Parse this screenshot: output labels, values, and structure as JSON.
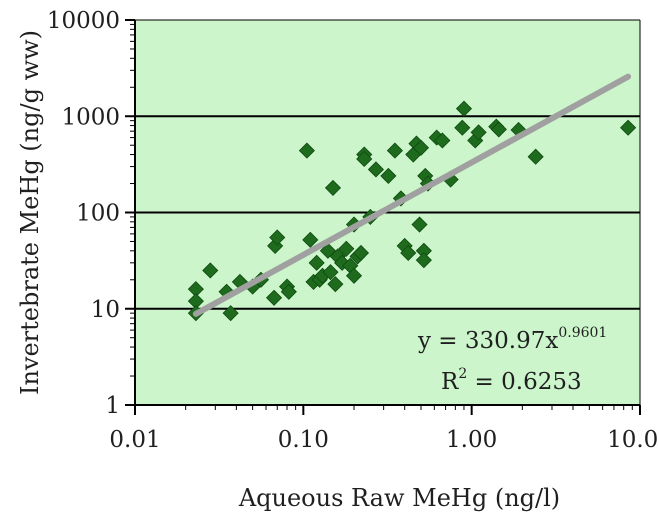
{
  "chart_data": {
    "type": "scatter",
    "title": "",
    "xlabel": "Aqueous Raw MeHg (ng/l)",
    "ylabel": "Invertebrate MeHg (ng/g ww)",
    "x_scale": "log",
    "y_scale": "log",
    "xlim": [
      0.01,
      10
    ],
    "ylim": [
      1,
      10000
    ],
    "x_ticks": [
      "0.01",
      "0.10",
      "1.00",
      "10.00"
    ],
    "y_ticks": [
      "1",
      "10",
      "100",
      "1000",
      "10000"
    ],
    "grid": "horizontal major gridlines",
    "legend": "none",
    "colors": {
      "plot_background": "#ccf5cc",
      "marker": "#1e6b1e",
      "trendline": "#a0a0a0",
      "gridline": "#000000"
    },
    "annotations": {
      "equation_base": "y = 330.97x",
      "equation_exponent": "0.9601",
      "r2_label": "R",
      "r2_sup": "2",
      "r2_value": " = 0.6253"
    },
    "trendline": {
      "type": "power",
      "coefficient": 330.97,
      "exponent": 0.9601,
      "x_range": [
        0.023,
        8.5
      ]
    },
    "points": [
      [
        0.023,
        16
      ],
      [
        0.023,
        12
      ],
      [
        0.023,
        9
      ],
      [
        0.028,
        25
      ],
      [
        0.035,
        15
      ],
      [
        0.037,
        9
      ],
      [
        0.042,
        19
      ],
      [
        0.05,
        17
      ],
      [
        0.056,
        20
      ],
      [
        0.067,
        13
      ],
      [
        0.068,
        45
      ],
      [
        0.07,
        55
      ],
      [
        0.08,
        17
      ],
      [
        0.082,
        15
      ],
      [
        0.105,
        440
      ],
      [
        0.11,
        52
      ],
      [
        0.115,
        19
      ],
      [
        0.12,
        30
      ],
      [
        0.125,
        20
      ],
      [
        0.13,
        22
      ],
      [
        0.14,
        40
      ],
      [
        0.145,
        24
      ],
      [
        0.15,
        180
      ],
      [
        0.155,
        18
      ],
      [
        0.16,
        35
      ],
      [
        0.17,
        30
      ],
      [
        0.18,
        42
      ],
      [
        0.19,
        28
      ],
      [
        0.2,
        75
      ],
      [
        0.2,
        22
      ],
      [
        0.21,
        35
      ],
      [
        0.22,
        38
      ],
      [
        0.23,
        400
      ],
      [
        0.23,
        360
      ],
      [
        0.25,
        90
      ],
      [
        0.27,
        280
      ],
      [
        0.32,
        240
      ],
      [
        0.35,
        440
      ],
      [
        0.38,
        140
      ],
      [
        0.4,
        45
      ],
      [
        0.42,
        38
      ],
      [
        0.45,
        400
      ],
      [
        0.47,
        520
      ],
      [
        0.49,
        75
      ],
      [
        0.5,
        470
      ],
      [
        0.52,
        40
      ],
      [
        0.52,
        32
      ],
      [
        0.53,
        240
      ],
      [
        0.55,
        200
      ],
      [
        0.62,
        600
      ],
      [
        0.67,
        560
      ],
      [
        0.75,
        220
      ],
      [
        0.88,
        760
      ],
      [
        0.9,
        1200
      ],
      [
        1.05,
        560
      ],
      [
        1.1,
        680
      ],
      [
        1.4,
        780
      ],
      [
        1.45,
        730
      ],
      [
        1.9,
        720
      ],
      [
        2.4,
        380
      ],
      [
        8.5,
        760
      ]
    ]
  }
}
